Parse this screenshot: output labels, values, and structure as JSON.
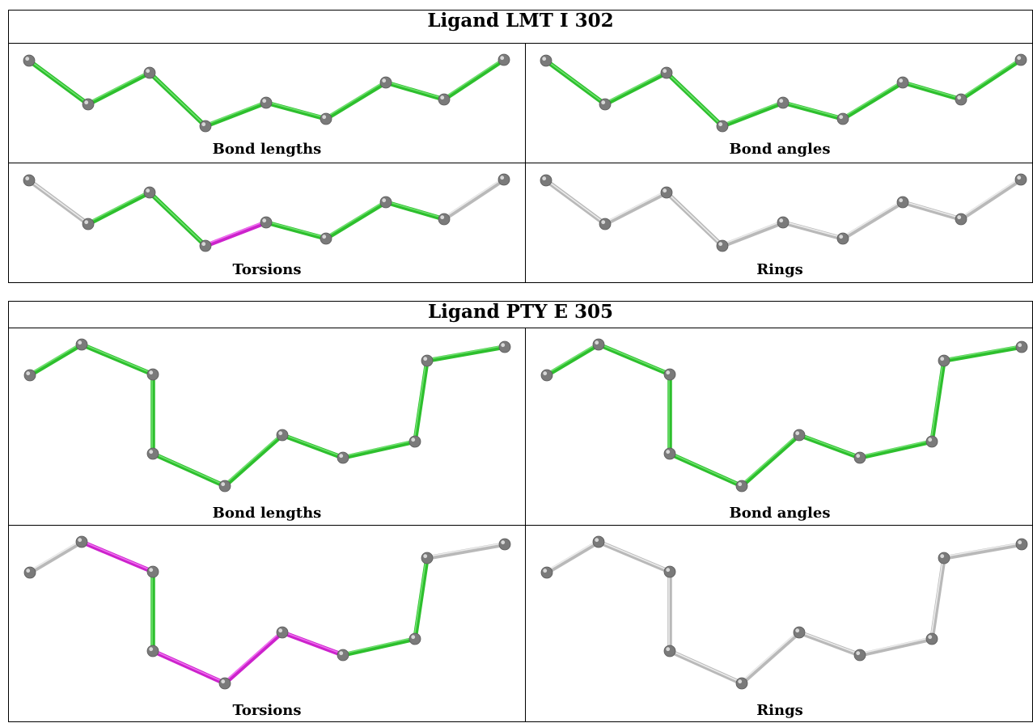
{
  "colors": {
    "ok": "#2dbf2d",
    "ok_light": "#6fe26f",
    "outlier": "#cc22cc",
    "outlier_light": "#f070f0",
    "neutral": "#b9b9b9",
    "neutral_light": "#ececec",
    "atom": "#7a7a7a"
  },
  "ligands": [
    {
      "title": "Ligand LMT I 302",
      "panels": [
        {
          "caption": "Bond lengths",
          "bonds": [
            "ok",
            "ok",
            "ok",
            "ok",
            "ok",
            "ok",
            "ok",
            "ok"
          ]
        },
        {
          "caption": "Bond angles",
          "bonds": [
            "ok",
            "ok",
            "ok",
            "ok",
            "ok",
            "ok",
            "ok",
            "ok"
          ]
        },
        {
          "caption": "Torsions",
          "bonds": [
            "neutral",
            "ok",
            "ok",
            "outlier",
            "ok",
            "ok",
            "ok",
            "neutral"
          ]
        },
        {
          "caption": "Rings",
          "bonds": [
            "neutral",
            "neutral",
            "neutral",
            "neutral",
            "neutral",
            "neutral",
            "neutral",
            "neutral"
          ]
        }
      ]
    },
    {
      "title": "Ligand PTY E 305",
      "panels": [
        {
          "caption": "Bond lengths",
          "bonds": [
            "ok",
            "ok",
            "ok",
            "ok",
            "ok",
            "ok",
            "ok",
            "ok",
            "ok"
          ]
        },
        {
          "caption": "Bond angles",
          "bonds": [
            "ok",
            "ok",
            "ok",
            "ok",
            "ok",
            "ok",
            "ok",
            "ok",
            "ok"
          ]
        },
        {
          "caption": "Torsions",
          "bonds": [
            "neutral",
            "outlier",
            "ok",
            "outlier",
            "outlier",
            "outlier",
            "ok",
            "ok",
            "neutral"
          ]
        },
        {
          "caption": "Rings",
          "bonds": [
            "neutral",
            "neutral",
            "neutral",
            "neutral",
            "neutral",
            "neutral",
            "neutral",
            "neutral",
            "neutral"
          ]
        }
      ]
    }
  ]
}
